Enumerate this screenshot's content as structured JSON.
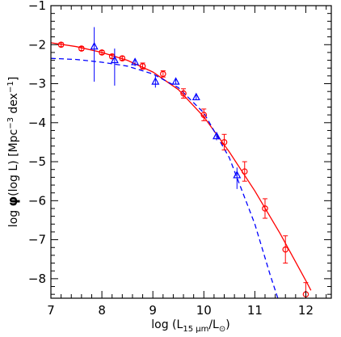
{
  "chart_data": {
    "type": "scatter",
    "title": "",
    "xlabel": {
      "prefix": "log (L",
      "subscript": "15 μm",
      "middle": "/L",
      "sun_symbol": "⊙",
      "suffix": ")"
    },
    "ylabel": {
      "prefix": "log ",
      "phi": "φ",
      "middle": "(log L)  [Mpc",
      "exp1": "−3",
      "middle2": " dex",
      "exp2": "−1",
      "suffix": "]"
    },
    "xlim": [
      7,
      12.5
    ],
    "ylim": [
      -8.5,
      -1
    ],
    "xticks": [
      7,
      8,
      9,
      10,
      11,
      12
    ],
    "yticks": [
      -8,
      -7,
      -6,
      -5,
      -4,
      -3,
      -2,
      -1
    ],
    "tick_labels_x": [
      "7",
      "8",
      "9",
      "10",
      "11",
      "12"
    ],
    "tick_labels_y": [
      "−8",
      "−7",
      "−6",
      "−5",
      "−4",
      "−3",
      "−2",
      "−1"
    ],
    "grid": false,
    "legend": "none",
    "series": [
      {
        "kind": "points",
        "color": "#ff0000",
        "marker": "circle",
        "points": [
          {
            "x": 7.2,
            "y": -2.0,
            "err": 0.05
          },
          {
            "x": 7.6,
            "y": -2.1,
            "err": 0.05
          },
          {
            "x": 8.0,
            "y": -2.2,
            "err": 0.05
          },
          {
            "x": 8.2,
            "y": -2.3,
            "err": 0.05
          },
          {
            "x": 8.4,
            "y": -2.35,
            "err": 0.05
          },
          {
            "x": 8.8,
            "y": -2.55,
            "err": 0.08
          },
          {
            "x": 9.2,
            "y": -2.75,
            "err": 0.08
          },
          {
            "x": 9.6,
            "y": -3.25,
            "err": 0.12
          },
          {
            "x": 10.0,
            "y": -3.8,
            "err": 0.15
          },
          {
            "x": 10.4,
            "y": -4.5,
            "err": 0.2
          },
          {
            "x": 10.8,
            "y": -5.25,
            "err": 0.25
          },
          {
            "x": 11.2,
            "y": -6.2,
            "err": 0.25
          },
          {
            "x": 11.6,
            "y": -7.25,
            "err": 0.35
          },
          {
            "x": 12.0,
            "y": -8.4,
            "err": 0.3
          }
        ]
      },
      {
        "kind": "points",
        "color": "#0000ff",
        "marker": "triangle",
        "points": [
          {
            "x": 7.85,
            "y": -2.05,
            "err_hi": 0.5,
            "err_lo": 0.9
          },
          {
            "x": 8.25,
            "y": -2.4,
            "err_hi": 0.3,
            "err_lo": 0.65
          },
          {
            "x": 8.65,
            "y": -2.45,
            "err_hi": 0.1,
            "err_lo": 0.1
          },
          {
            "x": 9.05,
            "y": -2.95,
            "err_hi": 0.15,
            "err_lo": 0.15
          },
          {
            "x": 9.45,
            "y": -2.95,
            "err_hi": 0.07,
            "err_lo": 0.07
          },
          {
            "x": 9.85,
            "y": -3.35,
            "err_hi": 0.07,
            "err_lo": 0.07
          },
          {
            "x": 10.25,
            "y": -4.35,
            "err_hi": 0.1,
            "err_lo": 0.1
          },
          {
            "x": 10.65,
            "y": -5.35,
            "err_hi": 0.2,
            "err_lo": 0.35
          }
        ]
      },
      {
        "kind": "line",
        "color": "#ff0000",
        "dash": "solid",
        "x": [
          7.0,
          7.5,
          8.0,
          8.5,
          9.0,
          9.5,
          10.0,
          10.5,
          11.0,
          11.5,
          12.0,
          12.1
        ],
        "y": [
          -1.95,
          -2.05,
          -2.2,
          -2.4,
          -2.7,
          -3.15,
          -3.85,
          -4.75,
          -5.75,
          -6.85,
          -8.05,
          -8.3
        ]
      },
      {
        "kind": "line",
        "color": "#0000ff",
        "dash": "dashed",
        "x": [
          7.0,
          7.5,
          8.0,
          8.5,
          9.0,
          9.5,
          10.0,
          10.5,
          11.0,
          11.3,
          11.45
        ],
        "y": [
          -2.35,
          -2.38,
          -2.45,
          -2.55,
          -2.75,
          -3.1,
          -3.75,
          -4.9,
          -6.6,
          -7.9,
          -8.5
        ]
      }
    ]
  }
}
